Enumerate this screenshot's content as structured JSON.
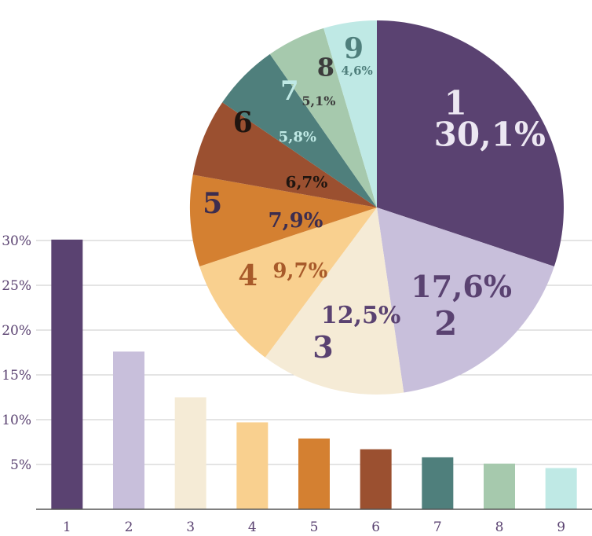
{
  "chart_data": [
    {
      "type": "bar",
      "categories": [
        "1",
        "2",
        "3",
        "4",
        "5",
        "6",
        "7",
        "8",
        "9"
      ],
      "values": [
        30.1,
        17.6,
        12.5,
        9.7,
        7.9,
        6.7,
        5.8,
        5.1,
        4.6
      ],
      "ylim": [
        0,
        30
      ],
      "ytick_labels": [
        "5%",
        "10%",
        "15%",
        "20%",
        "25%",
        "30%"
      ],
      "grid": true,
      "colors": [
        "#5a4271",
        "#c8bfdb",
        "#f5ebd6",
        "#f9d08f",
        "#d48031",
        "#9b5030",
        "#4f7f7c",
        "#a6c9ad",
        "#bfe9e5"
      ]
    },
    {
      "type": "pie",
      "labels": [
        "1",
        "2",
        "3",
        "4",
        "5",
        "6",
        "7",
        "8",
        "9"
      ],
      "values": [
        30.1,
        17.6,
        12.5,
        9.7,
        7.9,
        6.7,
        5.8,
        5.1,
        4.6
      ],
      "value_labels": [
        "30,1%",
        "17,6%",
        "12,5%",
        "9,7%",
        "7,9%",
        "6,7%",
        "5,8%",
        "5,1%",
        "4,6%"
      ],
      "start": "top",
      "direction": "clockwise",
      "colors": [
        "#5a4271",
        "#c8bfdb",
        "#f5ebd6",
        "#f9d08f",
        "#d48031",
        "#9b5030",
        "#4f7f7c",
        "#a6c9ad",
        "#bfe9e5"
      ],
      "label_colors": [
        "#ece7f2",
        "#5a4271",
        "#5a4271",
        "#a85a2a",
        "#3c2d4f",
        "#1f1510",
        "#bfe9e5",
        "#3c3c3c",
        "#4f7f7c"
      ]
    }
  ]
}
